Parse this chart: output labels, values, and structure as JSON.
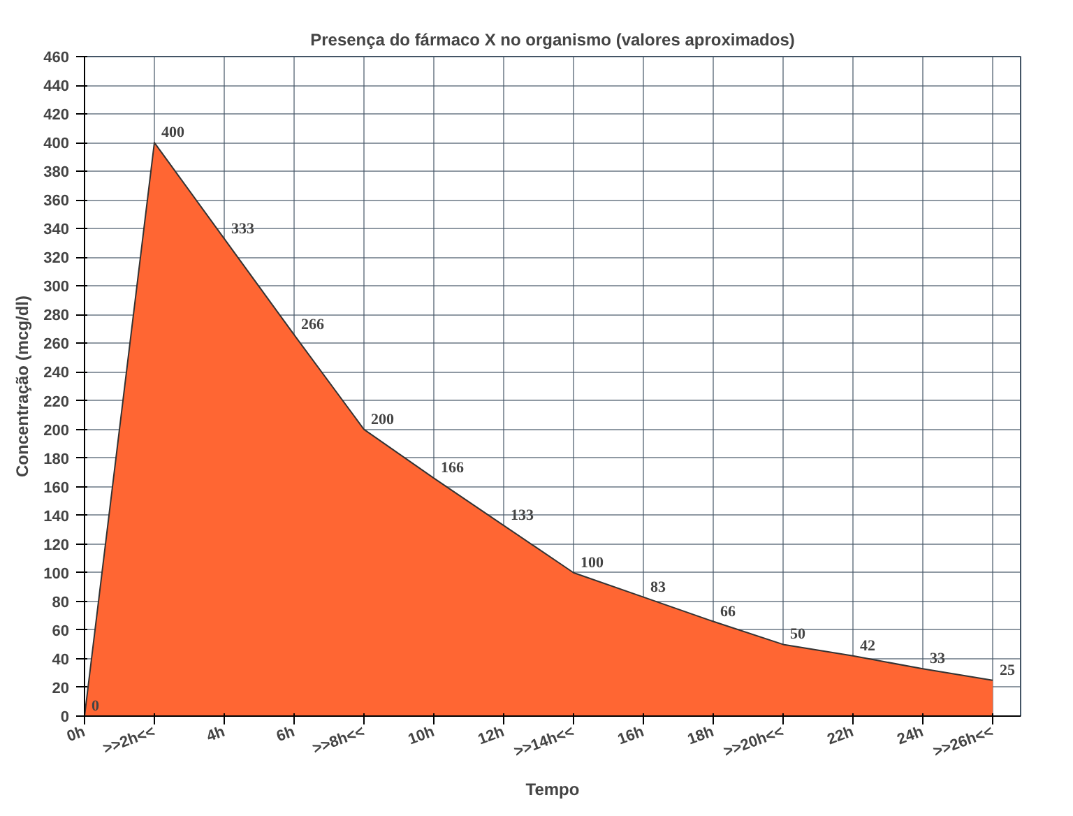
{
  "chart_data": {
    "type": "area",
    "title": "Presença do fármaco X no organismo (valores aproximados)",
    "xlabel": "Tempo",
    "ylabel": "Concentração (mcg/dl)",
    "categories": [
      "0h",
      ">>2h<<",
      "4h",
      "6h",
      ">>8h<<",
      "10h",
      "12h",
      ">>14h<<",
      "16h",
      "18h",
      ">>20h<<",
      "22h",
      "24h",
      ">>26h<<"
    ],
    "values": [
      0,
      400,
      333,
      266,
      200,
      166,
      133,
      100,
      83,
      66,
      50,
      42,
      33,
      25
    ],
    "color": "#ff6633",
    "data_labels": true,
    "grid": true,
    "ylim": [
      0,
      460
    ],
    "yticks": [
      0,
      20,
      40,
      60,
      80,
      100,
      120,
      140,
      160,
      180,
      200,
      220,
      240,
      260,
      280,
      300,
      320,
      340,
      360,
      380,
      400,
      420,
      440,
      460
    ]
  }
}
